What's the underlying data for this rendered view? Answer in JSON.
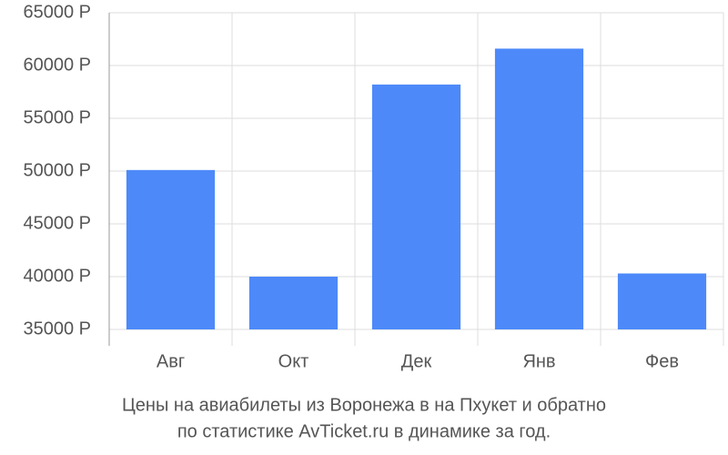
{
  "chart_data": {
    "type": "bar",
    "title": [
      "Цены на авиабилеты из Воронежа в на Пхукет и обратно",
      "по статистике AvTicket.ru в динамике за год."
    ],
    "categories": [
      "Авг",
      "Окт",
      "Дек",
      "Янв",
      "Фев"
    ],
    "values": [
      50100,
      40000,
      58200,
      61600,
      40300
    ],
    "color": "#4d89f9",
    "ylim": [
      35000,
      65000
    ],
    "yticks": [
      {
        "value": 35000,
        "label": "35000 Р"
      },
      {
        "value": 40000,
        "label": "40000 Р"
      },
      {
        "value": 45000,
        "label": "45000 Р"
      },
      {
        "value": 50000,
        "label": "50000 Р"
      },
      {
        "value": 55000,
        "label": "55000 Р"
      },
      {
        "value": 60000,
        "label": "60000 Р"
      },
      {
        "value": 65000,
        "label": "65000 Р"
      }
    ],
    "grid": true
  }
}
